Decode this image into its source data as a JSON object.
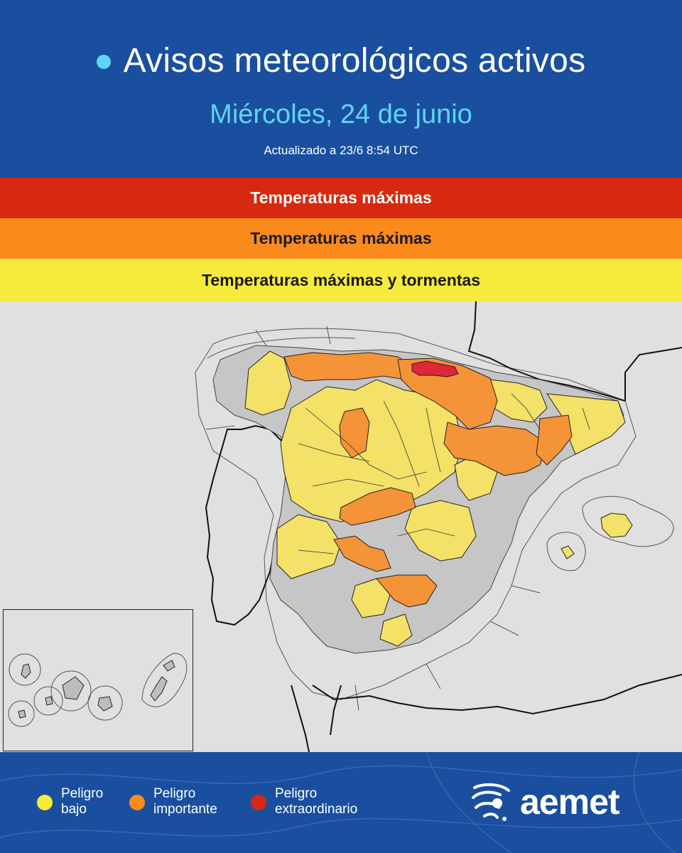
{
  "header": {
    "title": "Avisos meteorológicos activos",
    "date": "Miércoles, 24 de junio",
    "updated": "Actualizado a 23/6  8:54 UTC"
  },
  "warnings": [
    {
      "level": "extraordinario",
      "color": "#d7290f",
      "text": "Temperaturas máximas"
    },
    {
      "level": "importante",
      "color": "#fb8a1c",
      "text": "Temperaturas máximas"
    },
    {
      "level": "bajo",
      "color": "#f6ea3c",
      "text": "Temperaturas máximas y tormentas"
    }
  ],
  "colors": {
    "background": "#1a4f9f",
    "accent": "#5fd4f5",
    "map_background": "#e0e0e0",
    "no_warning": "#c4c4c4",
    "peligro_bajo": "#f3e168",
    "peligro_importante": "#f49337",
    "peligro_extraordinario": "#e0263a"
  },
  "legend": [
    {
      "label": "Peligro bajo",
      "line1": "Peligro",
      "line2": "bajo",
      "color": "#f6ea3c"
    },
    {
      "label": "Peligro importante",
      "line1": "Peligro",
      "line2": "importante",
      "color": "#fb8a1c"
    },
    {
      "label": "Peligro extraordinario",
      "line1": "Peligro",
      "line2": "extraordinario",
      "color": "#d7290f"
    }
  ],
  "logo": {
    "text": "aemet",
    "icon": "aemet-globe-icon"
  }
}
